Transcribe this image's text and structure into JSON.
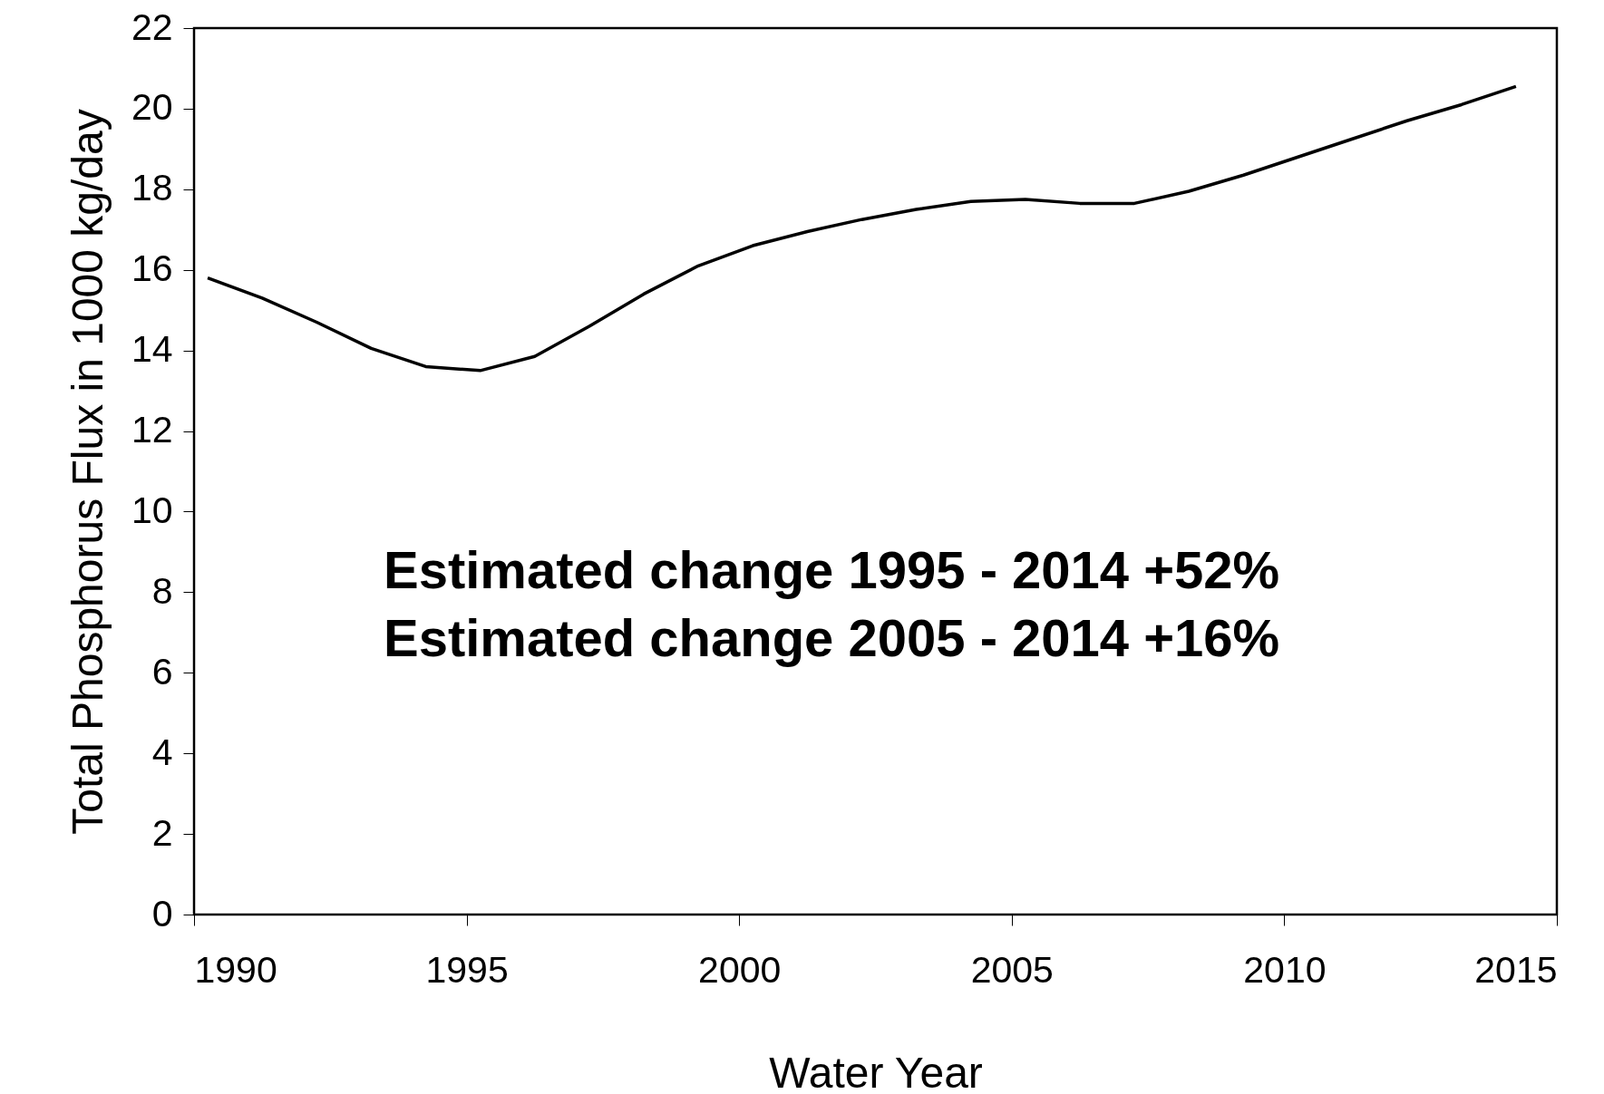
{
  "chart_data": {
    "type": "line",
    "xlabel": "Water Year",
    "ylabel": "Total Phosphorus Flux in 1000 kg/day",
    "x": [
      1990.25,
      1991.25,
      1992.25,
      1993.25,
      1994.25,
      1995.25,
      1996.25,
      1997.25,
      1998.25,
      1999.25,
      2000.25,
      2001.25,
      2002.25,
      2003.25,
      2004.25,
      2005.25,
      2006.25,
      2007.25,
      2008.25,
      2009.25,
      2010.25,
      2011.25,
      2012.25,
      2013.25,
      2014.25
    ],
    "series": [
      {
        "color": "#000000",
        "values": [
          15.8,
          15.3,
          14.7,
          14.05,
          13.6,
          13.5,
          13.85,
          14.6,
          15.4,
          16.1,
          16.6,
          16.95,
          17.25,
          17.5,
          17.7,
          17.75,
          17.65,
          17.65,
          17.95,
          18.35,
          18.8,
          19.25,
          19.7,
          20.1,
          20.55
        ]
      }
    ],
    "xlim": [
      1990,
      2015
    ],
    "xticks": [
      1990,
      1995,
      2000,
      2005,
      2010,
      2015
    ],
    "ylim": [
      0,
      22
    ],
    "yticks": [
      0,
      2,
      4,
      6,
      8,
      10,
      12,
      14,
      16,
      18,
      20,
      22
    ],
    "grid": false,
    "marker": "none",
    "line_style": "solid",
    "annotations": [
      "Estimated change 1995 - 2014  +52%",
      "Estimated change 2005 - 2014  +16%"
    ]
  }
}
